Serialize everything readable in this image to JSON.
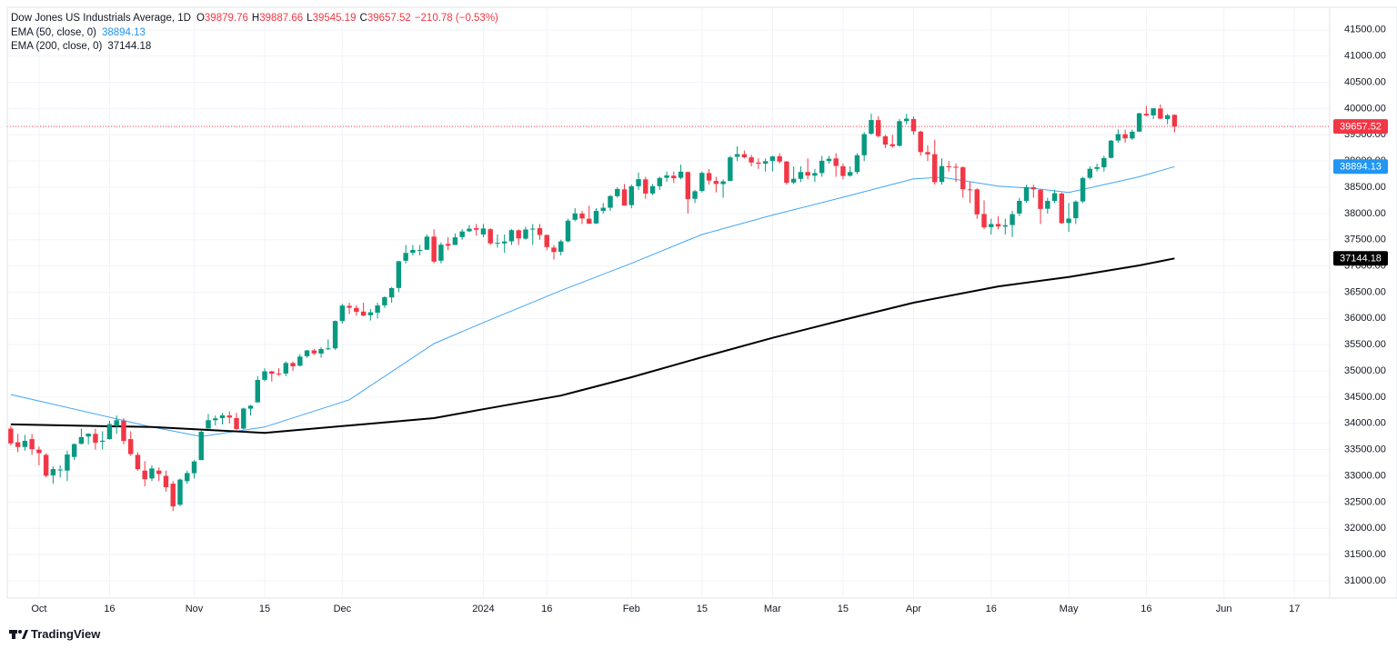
{
  "chart_data": {
    "type": "candlestick",
    "title": "Dow Jones US Industrials Average, 1D",
    "ohlc_labels": [
      "O",
      "H",
      "L",
      "C"
    ],
    "change": "−210.78 (−0.53%)",
    "brand": "TradingView",
    "up_color": "#089981",
    "down_color": "#f23645",
    "last_price_line": true,
    "grid": true,
    "xlim": [
      -0.5,
      187
    ],
    "ylim": [
      30670,
      41930
    ],
    "xticks": [
      {
        "value": 4,
        "label": "Oct"
      },
      {
        "value": 14,
        "label": "16"
      },
      {
        "value": 26,
        "label": "Nov"
      },
      {
        "value": 36,
        "label": "15"
      },
      {
        "value": 47,
        "label": "Dec"
      },
      {
        "value": 67,
        "label": "2024"
      },
      {
        "value": 76,
        "label": "16"
      },
      {
        "value": 88,
        "label": "Feb"
      },
      {
        "value": 98,
        "label": "15"
      },
      {
        "value": 108,
        "label": "Mar"
      },
      {
        "value": 118,
        "label": "15"
      },
      {
        "value": 128,
        "label": "Apr"
      },
      {
        "value": 139,
        "label": "16"
      },
      {
        "value": 150,
        "label": "May"
      },
      {
        "value": 161,
        "label": "16"
      },
      {
        "value": 172,
        "label": "Jun"
      },
      {
        "value": 182,
        "label": "17"
      }
    ],
    "yticks": [
      {
        "value": 31000,
        "label": "31000.00"
      },
      {
        "value": 31500,
        "label": "31500.00"
      },
      {
        "value": 32000,
        "label": "32000.00"
      },
      {
        "value": 32500,
        "label": "32500.00"
      },
      {
        "value": 33000,
        "label": "33000.00"
      },
      {
        "value": 33500,
        "label": "33500.00"
      },
      {
        "value": 34000,
        "label": "34000.00"
      },
      {
        "value": 34500,
        "label": "34500.00"
      },
      {
        "value": 35000,
        "label": "35000.00"
      },
      {
        "value": 35500,
        "label": "35500.00"
      },
      {
        "value": 36000,
        "label": "36000.00"
      },
      {
        "value": 36500,
        "label": "36500.00"
      },
      {
        "value": 37000,
        "label": "37000.00"
      },
      {
        "value": 37500,
        "label": "37500.00"
      },
      {
        "value": 38000,
        "label": "38000.00"
      },
      {
        "value": 38500,
        "label": "38500.00"
      },
      {
        "value": 39000,
        "label": "39000.00"
      },
      {
        "value": 39500,
        "label": "39500.00"
      },
      {
        "value": 40000,
        "label": "40000.00"
      },
      {
        "value": 40500,
        "label": "40500.00"
      },
      {
        "value": 41000,
        "label": "41000.00"
      },
      {
        "value": 41500,
        "label": "41500.00"
      }
    ],
    "ohlc": [
      [
        33900,
        33950,
        33580,
        33618
      ],
      [
        33640,
        33800,
        33450,
        33550
      ],
      [
        33550,
        33780,
        33480,
        33667
      ],
      [
        33700,
        33800,
        33400,
        33508
      ],
      [
        33500,
        33560,
        33200,
        33433
      ],
      [
        33400,
        33430,
        32970,
        33002
      ],
      [
        33010,
        33180,
        32850,
        33129
      ],
      [
        33120,
        33200,
        32970,
        33120
      ],
      [
        33100,
        33480,
        32900,
        33407
      ],
      [
        33360,
        33620,
        33300,
        33605
      ],
      [
        33610,
        33900,
        33600,
        33739
      ],
      [
        33750,
        33810,
        33600,
        33804
      ],
      [
        33800,
        33900,
        33500,
        33631
      ],
      [
        33650,
        33850,
        33500,
        33670
      ],
      [
        33700,
        34050,
        33690,
        33985
      ],
      [
        33950,
        34150,
        33800,
        34060
      ],
      [
        34050,
        34100,
        33600,
        33665
      ],
      [
        33700,
        33850,
        33380,
        33415
      ],
      [
        33400,
        33450,
        33100,
        33127
      ],
      [
        33100,
        33280,
        32800,
        32936
      ],
      [
        32950,
        33200,
        32900,
        33141
      ],
      [
        33100,
        33160,
        32900,
        33035
      ],
      [
        33000,
        33100,
        32700,
        32784
      ],
      [
        32850,
        32900,
        32330,
        32418
      ],
      [
        32450,
        32950,
        32420,
        32929
      ],
      [
        32900,
        33100,
        32850,
        33053
      ],
      [
        33050,
        33300,
        32950,
        33275
      ],
      [
        33300,
        33860,
        33300,
        33839
      ],
      [
        33900,
        34180,
        33900,
        34061
      ],
      [
        34060,
        34150,
        33960,
        34096
      ],
      [
        34100,
        34200,
        33980,
        34153
      ],
      [
        34150,
        34230,
        34000,
        34112
      ],
      [
        34100,
        34200,
        33880,
        33892
      ],
      [
        33900,
        34300,
        33880,
        34283
      ],
      [
        34280,
        34350,
        34150,
        34337
      ],
      [
        34400,
        34900,
        34400,
        34828
      ],
      [
        34830,
        35050,
        34800,
        34991
      ],
      [
        34990,
        35000,
        34800,
        34946
      ],
      [
        34950,
        35050,
        34900,
        34947
      ],
      [
        34950,
        35180,
        34900,
        35151
      ],
      [
        35150,
        35180,
        35000,
        35088
      ],
      [
        35100,
        35320,
        35080,
        35273
      ],
      [
        35280,
        35400,
        35250,
        35390
      ],
      [
        35390,
        35420,
        35300,
        35333
      ],
      [
        35330,
        35450,
        35250,
        35417
      ],
      [
        35420,
        35600,
        35400,
        35430
      ],
      [
        35430,
        35960,
        35400,
        35951
      ],
      [
        35950,
        36280,
        35900,
        36245
      ],
      [
        36240,
        36300,
        36080,
        36204
      ],
      [
        36200,
        36250,
        36050,
        36125
      ],
      [
        36130,
        36300,
        36040,
        36054
      ],
      [
        36060,
        36180,
        35960,
        36117
      ],
      [
        36110,
        36300,
        36000,
        36248
      ],
      [
        36250,
        36420,
        36200,
        36405
      ],
      [
        36400,
        36600,
        36300,
        36578
      ],
      [
        36580,
        37100,
        36500,
        37090
      ],
      [
        37100,
        37400,
        37050,
        37248
      ],
      [
        37250,
        37400,
        37200,
        37306
      ],
      [
        37300,
        37400,
        37200,
        37306
      ],
      [
        37310,
        37600,
        37300,
        37558
      ],
      [
        37560,
        37700,
        37050,
        37083
      ],
      [
        37100,
        37450,
        37050,
        37405
      ],
      [
        37420,
        37550,
        37300,
        37386
      ],
      [
        37400,
        37620,
        37400,
        37545
      ],
      [
        37550,
        37700,
        37500,
        37657
      ],
      [
        37660,
        37780,
        37650,
        37710
      ],
      [
        37720,
        37800,
        37580,
        37690
      ],
      [
        37600,
        37800,
        37550,
        37715
      ],
      [
        37700,
        37720,
        37400,
        37430
      ],
      [
        37440,
        37600,
        37350,
        37440
      ],
      [
        37430,
        37600,
        37250,
        37466
      ],
      [
        37470,
        37700,
        37400,
        37683
      ],
      [
        37680,
        37700,
        37400,
        37525
      ],
      [
        37520,
        37750,
        37500,
        37695
      ],
      [
        37700,
        37800,
        37400,
        37711
      ],
      [
        37720,
        37800,
        37500,
        37592
      ],
      [
        37590,
        37600,
        37300,
        37361
      ],
      [
        37350,
        37400,
        37120,
        37266
      ],
      [
        37270,
        37500,
        37200,
        37468
      ],
      [
        37470,
        37900,
        37450,
        37863
      ],
      [
        37880,
        38100,
        37850,
        38001
      ],
      [
        38000,
        38050,
        37800,
        37905
      ],
      [
        37900,
        38150,
        37800,
        37806
      ],
      [
        37810,
        38100,
        37800,
        38049
      ],
      [
        38050,
        38200,
        38000,
        38109
      ],
      [
        38110,
        38350,
        38050,
        38333
      ],
      [
        38330,
        38500,
        38300,
        38467
      ],
      [
        38460,
        38560,
        38150,
        38150
      ],
      [
        38160,
        38550,
        38100,
        38519
      ],
      [
        38520,
        38780,
        38450,
        38654
      ],
      [
        38650,
        38700,
        38280,
        38380
      ],
      [
        38380,
        38560,
        38350,
        38521
      ],
      [
        38520,
        38700,
        38450,
        38677
      ],
      [
        38680,
        38800,
        38600,
        38726
      ],
      [
        38720,
        38800,
        38580,
        38671
      ],
      [
        38680,
        38930,
        38650,
        38797
      ],
      [
        38790,
        38800,
        38000,
        38272
      ],
      [
        38280,
        38450,
        38200,
        38424
      ],
      [
        38430,
        38800,
        38400,
        38773
      ],
      [
        38770,
        38850,
        38550,
        38627
      ],
      [
        38620,
        38700,
        38400,
        38563
      ],
      [
        38560,
        38650,
        38300,
        38612
      ],
      [
        38620,
        39100,
        38620,
        39069
      ],
      [
        39080,
        39280,
        39000,
        39131
      ],
      [
        39130,
        39200,
        39050,
        39069
      ],
      [
        39070,
        39120,
        38900,
        38972
      ],
      [
        38970,
        39050,
        38850,
        38949
      ],
      [
        38950,
        39050,
        38800,
        38996
      ],
      [
        39000,
        39100,
        38800,
        39087
      ],
      [
        39090,
        39150,
        38950,
        38989
      ],
      [
        38990,
        39000,
        38550,
        38585
      ],
      [
        38590,
        38900,
        38560,
        38661
      ],
      [
        38660,
        38900,
        38600,
        38791
      ],
      [
        38790,
        39050,
        38650,
        38723
      ],
      [
        38720,
        38850,
        38600,
        38770
      ],
      [
        38770,
        39100,
        38700,
        39005
      ],
      [
        39000,
        39100,
        38950,
        39043
      ],
      [
        39050,
        39150,
        38700,
        38906
      ],
      [
        38900,
        38950,
        38650,
        38715
      ],
      [
        38720,
        38900,
        38700,
        38790
      ],
      [
        38790,
        39150,
        38750,
        39110
      ],
      [
        39110,
        39550,
        39000,
        39512
      ],
      [
        39520,
        39900,
        39500,
        39781
      ],
      [
        39780,
        39850,
        39450,
        39475
      ],
      [
        39470,
        39500,
        39250,
        39313
      ],
      [
        39320,
        39500,
        39250,
        39282
      ],
      [
        39290,
        39800,
        39280,
        39760
      ],
      [
        39760,
        39900,
        39700,
        39807
      ],
      [
        39800,
        39850,
        39500,
        39567
      ],
      [
        39560,
        39580,
        39100,
        39170
      ],
      [
        39170,
        39300,
        39000,
        39127
      ],
      [
        39130,
        39400,
        38550,
        38597
      ],
      [
        38600,
        39050,
        38550,
        38904
      ],
      [
        38900,
        39000,
        38800,
        38892
      ],
      [
        38890,
        38950,
        38600,
        38883
      ],
      [
        38880,
        38900,
        38300,
        38462
      ],
      [
        38460,
        38600,
        38200,
        38459
      ],
      [
        38460,
        38480,
        37900,
        37983
      ],
      [
        37990,
        38250,
        37700,
        37735
      ],
      [
        37740,
        37900,
        37600,
        37799
      ],
      [
        37800,
        37950,
        37700,
        37753
      ],
      [
        37750,
        37900,
        37600,
        37775
      ],
      [
        37780,
        38050,
        37550,
        37986
      ],
      [
        38000,
        38300,
        37950,
        38240
      ],
      [
        38240,
        38550,
        38200,
        38503
      ],
      [
        38500,
        38550,
        38300,
        38461
      ],
      [
        38450,
        38460,
        37800,
        38086
      ],
      [
        38090,
        38300,
        38000,
        38240
      ],
      [
        38240,
        38450,
        38200,
        38386
      ],
      [
        38380,
        38400,
        37800,
        37816
      ],
      [
        37820,
        38200,
        37650,
        37903
      ],
      [
        37910,
        38250,
        37800,
        38226
      ],
      [
        38230,
        38700,
        38200,
        38676
      ],
      [
        38680,
        38900,
        38650,
        38852
      ],
      [
        38850,
        38950,
        38800,
        38884
      ],
      [
        38880,
        39100,
        38800,
        39056
      ],
      [
        39060,
        39400,
        39050,
        39388
      ],
      [
        39390,
        39600,
        39350,
        39513
      ],
      [
        39510,
        39600,
        39350,
        39432
      ],
      [
        39430,
        39600,
        39400,
        39558
      ],
      [
        39560,
        39920,
        39560,
        39908
      ],
      [
        39900,
        40050,
        39850,
        39869
      ],
      [
        39870,
        40010,
        39800,
        40004
      ],
      [
        40000,
        40080,
        39800,
        39807
      ],
      [
        39800,
        39900,
        39700,
        39872
      ],
      [
        39879.76,
        39887.66,
        39545.19,
        39657.52
      ]
    ],
    "series": [
      {
        "name": "EMA (50, close, 0)",
        "color": "#42a5f5",
        "x": [
          0,
          20,
          27,
          36,
          48,
          60,
          67,
          78,
          88,
          98,
          108,
          118,
          128,
          132,
          140,
          145,
          150,
          155,
          160,
          165
        ],
        "values": [
          34550,
          33930,
          33750,
          33930,
          34450,
          35520,
          35920,
          36530,
          37050,
          37600,
          37970,
          38310,
          38660,
          38690,
          38520,
          38480,
          38400,
          38550,
          38700,
          38894.13
        ]
      },
      {
        "name": "EMA (200, close, 0)",
        "color": "#000000",
        "x": [
          0,
          20,
          36,
          48,
          60,
          67,
          78,
          88,
          98,
          108,
          118,
          128,
          140,
          150,
          160,
          165
        ],
        "values": [
          33980,
          33930,
          33820,
          33960,
          34100,
          34270,
          34530,
          34880,
          35260,
          35630,
          35970,
          36300,
          36610,
          36790,
          37010,
          37144.18
        ]
      }
    ]
  }
}
